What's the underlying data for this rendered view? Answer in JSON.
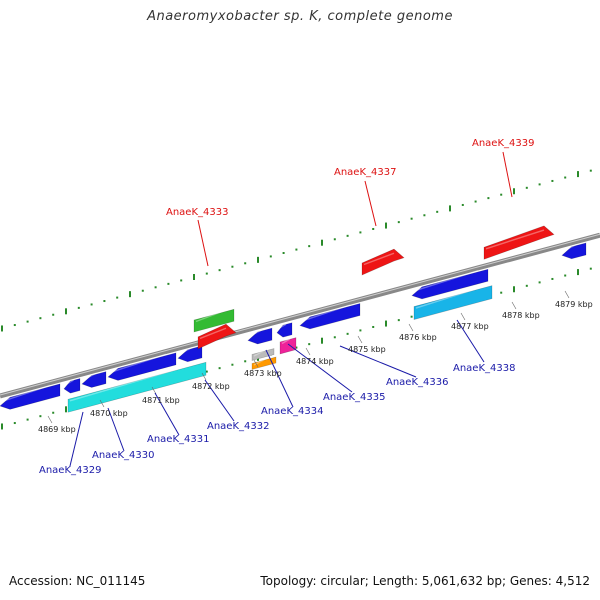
{
  "title": "Anaeromyxobacter sp. K, complete genome",
  "footer": {
    "accession": "Accession: NC_011145",
    "topology": "Topology: circular; Length: 5,061,632 bp; Genes: 4,512"
  },
  "colors": {
    "backbone": "#888888",
    "upper_ruler": "#2a8a2a",
    "lower_ruler": "#2a8a2a",
    "forward_label": "#dd1111",
    "reverse_label": "#1a1aa8",
    "blue": "#1515dd",
    "cyan": "#22dddd",
    "skyblue": "#18b4e8",
    "red": "#ee1515",
    "green": "#33bb33",
    "magenta": "#ee2299",
    "orange": "#ff9900",
    "gray": "#bbbbbb"
  },
  "kbp_labels": [
    "4869 kbp",
    "4870 kbp",
    "4871 kbp",
    "4872 kbp",
    "4873 kbp",
    "4874 kbp",
    "4875 kbp",
    "4876 kbp",
    "4877 kbp",
    "4878 kbp",
    "4879 kbp"
  ],
  "gene_labels": {
    "AnaeK_4329": "AnaeK_4329",
    "AnaeK_4330": "AnaeK_4330",
    "AnaeK_4331": "AnaeK_4331",
    "AnaeK_4332": "AnaeK_4332",
    "AnaeK_4333": "AnaeK_4333",
    "AnaeK_4334": "AnaeK_4334",
    "AnaeK_4335": "AnaeK_4335",
    "AnaeK_4336": "AnaeK_4336",
    "AnaeK_4337": "AnaeK_4337",
    "AnaeK_4338": "AnaeK_4338",
    "AnaeK_4339": "AnaeK_4339"
  }
}
